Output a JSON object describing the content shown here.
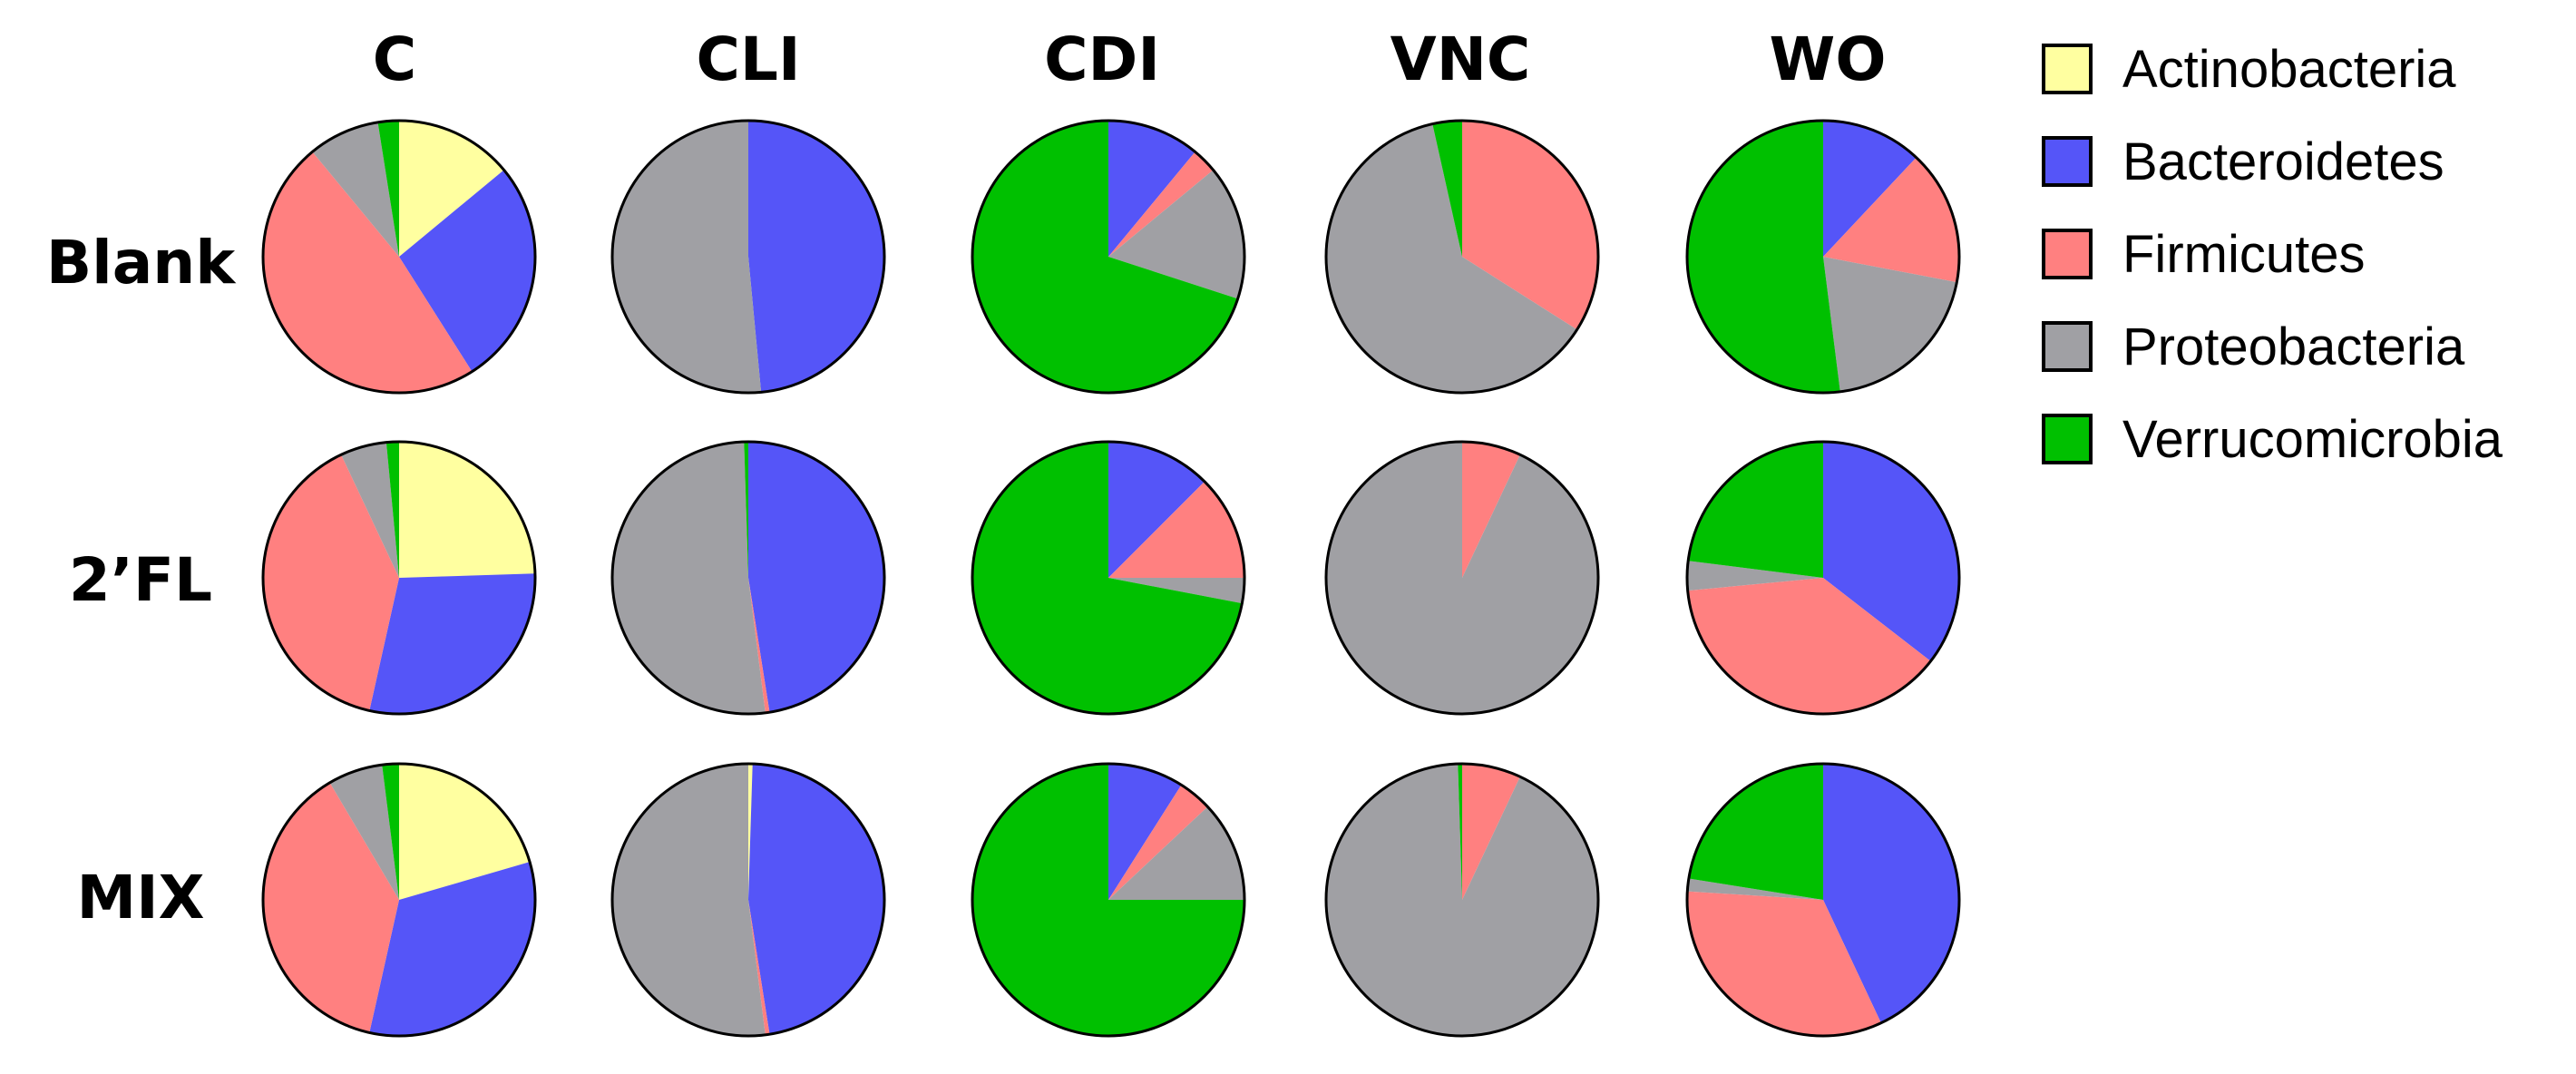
{
  "chart_data": {
    "type": "pie",
    "title": "",
    "columns": [
      "C",
      "CLI",
      "CDI",
      "VNC",
      "WO"
    ],
    "rows": [
      "Blank",
      "2’FL",
      "MIX"
    ],
    "categories": [
      "Actinobacteria",
      "Bacteroidetes",
      "Firmicutes",
      "Proteobacteria",
      "Verrucomicrobia"
    ],
    "colors": {
      "Actinobacteria": "#ffffa0",
      "Bacteroidetes": "#5555f8",
      "Firmicutes": "#ff8080",
      "Proteobacteria": "#a0a0a4",
      "Verrucomicrobia": "#00c000"
    },
    "legend_position": "right",
    "pies": [
      {
        "row": "Blank",
        "column": "C",
        "values": {
          "Actinobacteria": 14,
          "Bacteroidetes": 27,
          "Firmicutes": 48,
          "Proteobacteria": 8.5,
          "Verrucomicrobia": 2.5
        }
      },
      {
        "row": "Blank",
        "column": "CLI",
        "values": {
          "Actinobacteria": 0,
          "Bacteroidetes": 48.5,
          "Firmicutes": 0,
          "Proteobacteria": 51.5,
          "Verrucomicrobia": 0
        }
      },
      {
        "row": "Blank",
        "column": "CDI",
        "values": {
          "Actinobacteria": 0,
          "Bacteroidetes": 11,
          "Firmicutes": 3,
          "Proteobacteria": 16,
          "Verrucomicrobia": 70
        }
      },
      {
        "row": "Blank",
        "column": "VNC",
        "values": {
          "Actinobacteria": 0,
          "Bacteroidetes": 0,
          "Firmicutes": 34,
          "Proteobacteria": 62.5,
          "Verrucomicrobia": 3.5
        }
      },
      {
        "row": "Blank",
        "column": "WO",
        "values": {
          "Actinobacteria": 0,
          "Bacteroidetes": 12,
          "Firmicutes": 16,
          "Proteobacteria": 20,
          "Verrucomicrobia": 52
        }
      },
      {
        "row": "2’FL",
        "column": "C",
        "values": {
          "Actinobacteria": 24.5,
          "Bacteroidetes": 29,
          "Firmicutes": 39.5,
          "Proteobacteria": 5.5,
          "Verrucomicrobia": 1.5
        }
      },
      {
        "row": "2’FL",
        "column": "CLI",
        "values": {
          "Actinobacteria": 0,
          "Bacteroidetes": 47.5,
          "Firmicutes": 0.5,
          "Proteobacteria": 51.5,
          "Verrucomicrobia": 0.5
        }
      },
      {
        "row": "2’FL",
        "column": "CDI",
        "values": {
          "Actinobacteria": 0,
          "Bacteroidetes": 12.5,
          "Firmicutes": 12.5,
          "Proteobacteria": 3,
          "Verrucomicrobia": 72
        }
      },
      {
        "row": "2’FL",
        "column": "VNC",
        "values": {
          "Actinobacteria": 0,
          "Bacteroidetes": 0,
          "Firmicutes": 7,
          "Proteobacteria": 93,
          "Verrucomicrobia": 0
        }
      },
      {
        "row": "2’FL",
        "column": "WO",
        "values": {
          "Actinobacteria": 0,
          "Bacteroidetes": 35.5,
          "Firmicutes": 38,
          "Proteobacteria": 3.5,
          "Verrucomicrobia": 23
        }
      },
      {
        "row": "MIX",
        "column": "C",
        "values": {
          "Actinobacteria": 20.5,
          "Bacteroidetes": 33,
          "Firmicutes": 38,
          "Proteobacteria": 6.5,
          "Verrucomicrobia": 2
        }
      },
      {
        "row": "MIX",
        "column": "CLI",
        "values": {
          "Actinobacteria": 0.5,
          "Bacteroidetes": 47,
          "Firmicutes": 0.5,
          "Proteobacteria": 52,
          "Verrucomicrobia": 0
        }
      },
      {
        "row": "MIX",
        "column": "CDI",
        "values": {
          "Actinobacteria": 0,
          "Bacteroidetes": 9,
          "Firmicutes": 4,
          "Proteobacteria": 12,
          "Verrucomicrobia": 75
        }
      },
      {
        "row": "MIX",
        "column": "VNC",
        "values": {
          "Actinobacteria": 0,
          "Bacteroidetes": 0,
          "Firmicutes": 7,
          "Proteobacteria": 92.5,
          "Verrucomicrobia": 0.5
        }
      },
      {
        "row": "MIX",
        "column": "WO",
        "values": {
          "Actinobacteria": 0,
          "Bacteroidetes": 43,
          "Firmicutes": 33,
          "Proteobacteria": 1.5,
          "Verrucomicrobia": 22.5
        }
      }
    ]
  }
}
